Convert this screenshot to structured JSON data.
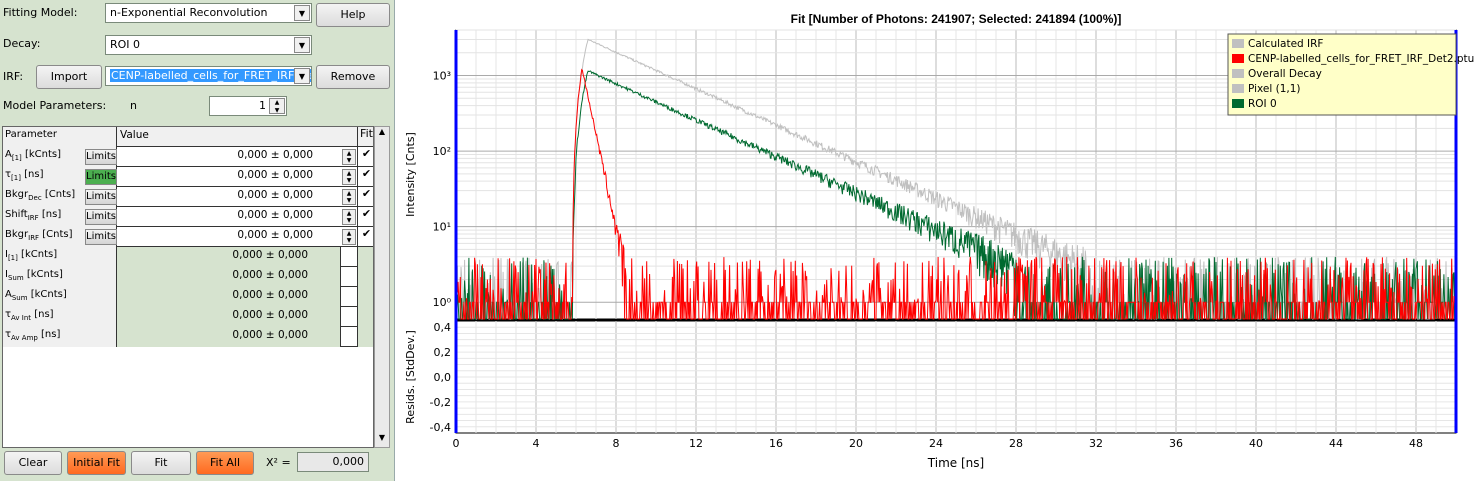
{
  "left": {
    "fitting_model_label": "Fitting Model:",
    "fitting_model_value": "n-Exponential Reconvolution",
    "help_label": "Help",
    "decay_label": "Decay:",
    "decay_value": "ROI 0",
    "irf_label": "IRF:",
    "import_label": "Import",
    "irf_value": "CENP-labelled_cells_for_FRET_IRF_Det2.ptu",
    "remove_label": "Remove",
    "model_params_label": "Model Parameters:",
    "n_label": "n",
    "n_value": "1",
    "table_headers": {
      "parameter": "Parameter",
      "value": "Value",
      "fit": "Fit"
    },
    "limits_label": "Limits",
    "rows": [
      {
        "name": "A",
        "sub": "[1]",
        "unit": "[kCnts]",
        "value": "0,000 ± 0,000",
        "fit": "✔",
        "limits": true
      },
      {
        "name": "τ",
        "sub": "[1]",
        "unit": "[ns]",
        "value": "0,000 ± 0,000",
        "fit": "✔",
        "limits": true
      },
      {
        "name": "Bkgr",
        "sub": "Dec",
        "unit": "[Cnts]",
        "value": "0,000 ± 0,000",
        "fit": "✔",
        "limits": true
      },
      {
        "name": "Shift",
        "sub": "IRF",
        "unit": "[ns]",
        "value": "0,000 ± 0,000",
        "fit": "✔",
        "limits": true
      },
      {
        "name": "Bkgr",
        "sub": "IRF",
        "unit": "[Cnts]",
        "value": "0,000 ± 0,000",
        "fit": "✔",
        "limits": true
      },
      {
        "name": "I",
        "sub": "[1]",
        "unit": "[kCnts]",
        "value": "0,000 ± 0,000",
        "fit": "",
        "limits": false
      },
      {
        "name": "I",
        "sub": "Sum",
        "unit": "[kCnts]",
        "value": "0,000 ± 0,000",
        "fit": "",
        "limits": false
      },
      {
        "name": "A",
        "sub": "Sum",
        "unit": "[kCnts]",
        "value": "0,000 ± 0,000",
        "fit": "",
        "limits": false
      },
      {
        "name": "τ",
        "sub": "Av Int",
        "unit": "[ns]",
        "value": "0,000 ± 0,000",
        "fit": "",
        "limits": false
      },
      {
        "name": "τ",
        "sub": "Av Amp",
        "unit": "[ns]",
        "value": "0,000 ± 0,000",
        "fit": "",
        "limits": false
      }
    ],
    "clear_label": "Clear",
    "initial_fit_label": "Initial Fit",
    "fit_label": "Fit",
    "fit_all_label": "Fit All",
    "chi2_label": "X² =",
    "chi2_value": "0,000"
  },
  "chart_data": {
    "type": "line",
    "title": "Fit [Number of Photons: 241907; Selected: 241894 (100%)]",
    "xlabel": "Time [ns]",
    "ylabel": "Intensity [Cnts]",
    "resid_ylabel": "Resids. [StdDev.]",
    "xlim": [
      0,
      50
    ],
    "ylim": [
      0.6,
      4000
    ],
    "yscale": "log",
    "resid_ylim": [
      -0.45,
      0.45
    ],
    "x_ticks": [
      0,
      4,
      8,
      12,
      16,
      20,
      24,
      28,
      32,
      36,
      40,
      44,
      48
    ],
    "y_ticks": [
      "10⁰",
      "10¹",
      "10²",
      "10³"
    ],
    "resid_ticks": [
      "0,4",
      "0,2",
      "0,0",
      "-0,2",
      "-0,4"
    ],
    "legend_position": "top-right",
    "series": [
      {
        "name": "Calculated IRF",
        "color": "#c0c0c0",
        "shape": "none"
      },
      {
        "name": "CENP-labelled_cells_for_FRET_IRF_Det2.ptu",
        "color": "#ff0000",
        "shape": "irf",
        "onset": 5.8,
        "peak_time": 6.3,
        "peak": 1250,
        "decay_ns": 0.35
      },
      {
        "name": "Overall Decay",
        "color": "#c0c0c0",
        "shape": "decay",
        "onset": 5.8,
        "peak_time": 6.6,
        "peak": 3000,
        "decay_ns": 3.6
      },
      {
        "name": "Pixel (1,1)",
        "color": "#c0c0c0",
        "shape": "none"
      },
      {
        "name": "ROI 0",
        "color": "#006a30",
        "shape": "decay",
        "onset": 5.8,
        "peak_time": 6.6,
        "peak": 1150,
        "decay_ns": 3.6
      }
    ]
  }
}
